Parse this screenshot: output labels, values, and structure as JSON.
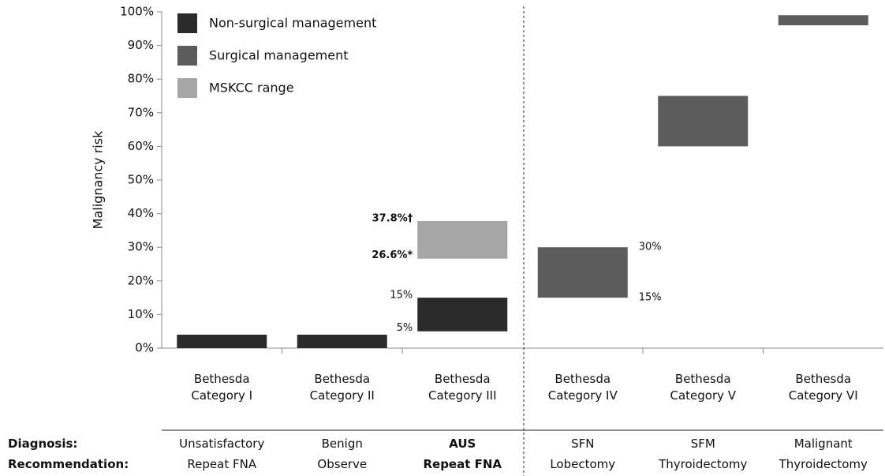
{
  "chart_data": {
    "type": "range_bar",
    "ylabel": "Malignancy risk",
    "categories": [
      "Bethesda Category I",
      "Bethesda Category II",
      "Bethesda Category III",
      "Bethesda Category IV",
      "Bethesda Category V",
      "Bethesda Category VI"
    ],
    "series": [
      {
        "name": "Non-surgical management",
        "color": "#2b2b2b",
        "low": [
          0,
          0,
          5,
          null,
          null,
          null
        ],
        "high": [
          4,
          4,
          15,
          null,
          null,
          null
        ],
        "low_labels": [
          null,
          null,
          "5%",
          null,
          null,
          null
        ],
        "high_labels": [
          null,
          null,
          "15%",
          null,
          null,
          null
        ]
      },
      {
        "name": "Surgical management",
        "color": "#5c5c5c",
        "low": [
          null,
          null,
          null,
          15,
          60,
          96
        ],
        "high": [
          null,
          null,
          null,
          30,
          75,
          99
        ],
        "low_labels": [
          null,
          null,
          null,
          "15%",
          null,
          null
        ],
        "high_labels": [
          null,
          null,
          null,
          "30%",
          null,
          null
        ]
      },
      {
        "name": "MSKCC range",
        "color": "#a6a6a6",
        "low": [
          null,
          null,
          26.6,
          null,
          null,
          null
        ],
        "high": [
          null,
          null,
          37.8,
          null,
          null,
          null
        ],
        "low_labels": [
          null,
          null,
          "26.6%*",
          null,
          null,
          null
        ],
        "high_labels": [
          null,
          null,
          "37.8%†",
          null,
          null,
          null
        ]
      }
    ],
    "ylim": [
      0,
      100
    ],
    "yticks": [
      {
        "value": 0,
        "label": "0%"
      },
      {
        "value": 10,
        "label": "10%"
      },
      {
        "value": 20,
        "label": "20%"
      },
      {
        "value": 30,
        "label": "30%"
      },
      {
        "value": 40,
        "label": "40%"
      },
      {
        "value": 50,
        "label": "50%"
      },
      {
        "value": 60,
        "label": "60%"
      },
      {
        "value": 70,
        "label": "70%"
      },
      {
        "value": 80,
        "label": "80%"
      },
      {
        "value": 90,
        "label": "90%"
      },
      {
        "value": 100,
        "label": "100%"
      }
    ],
    "row_labels": [
      "Diagnosis:",
      "Recommendation:"
    ],
    "diagnosis": [
      "Unsatisfactory",
      "Benign",
      "AUS",
      "SFN",
      "SFM",
      "Malignant"
    ],
    "recommendation": [
      "Repeat FNA",
      "Observe",
      "Repeat FNA",
      "Lobectomy",
      "Thyroidectomy",
      "Thyroidectomy"
    ]
  }
}
